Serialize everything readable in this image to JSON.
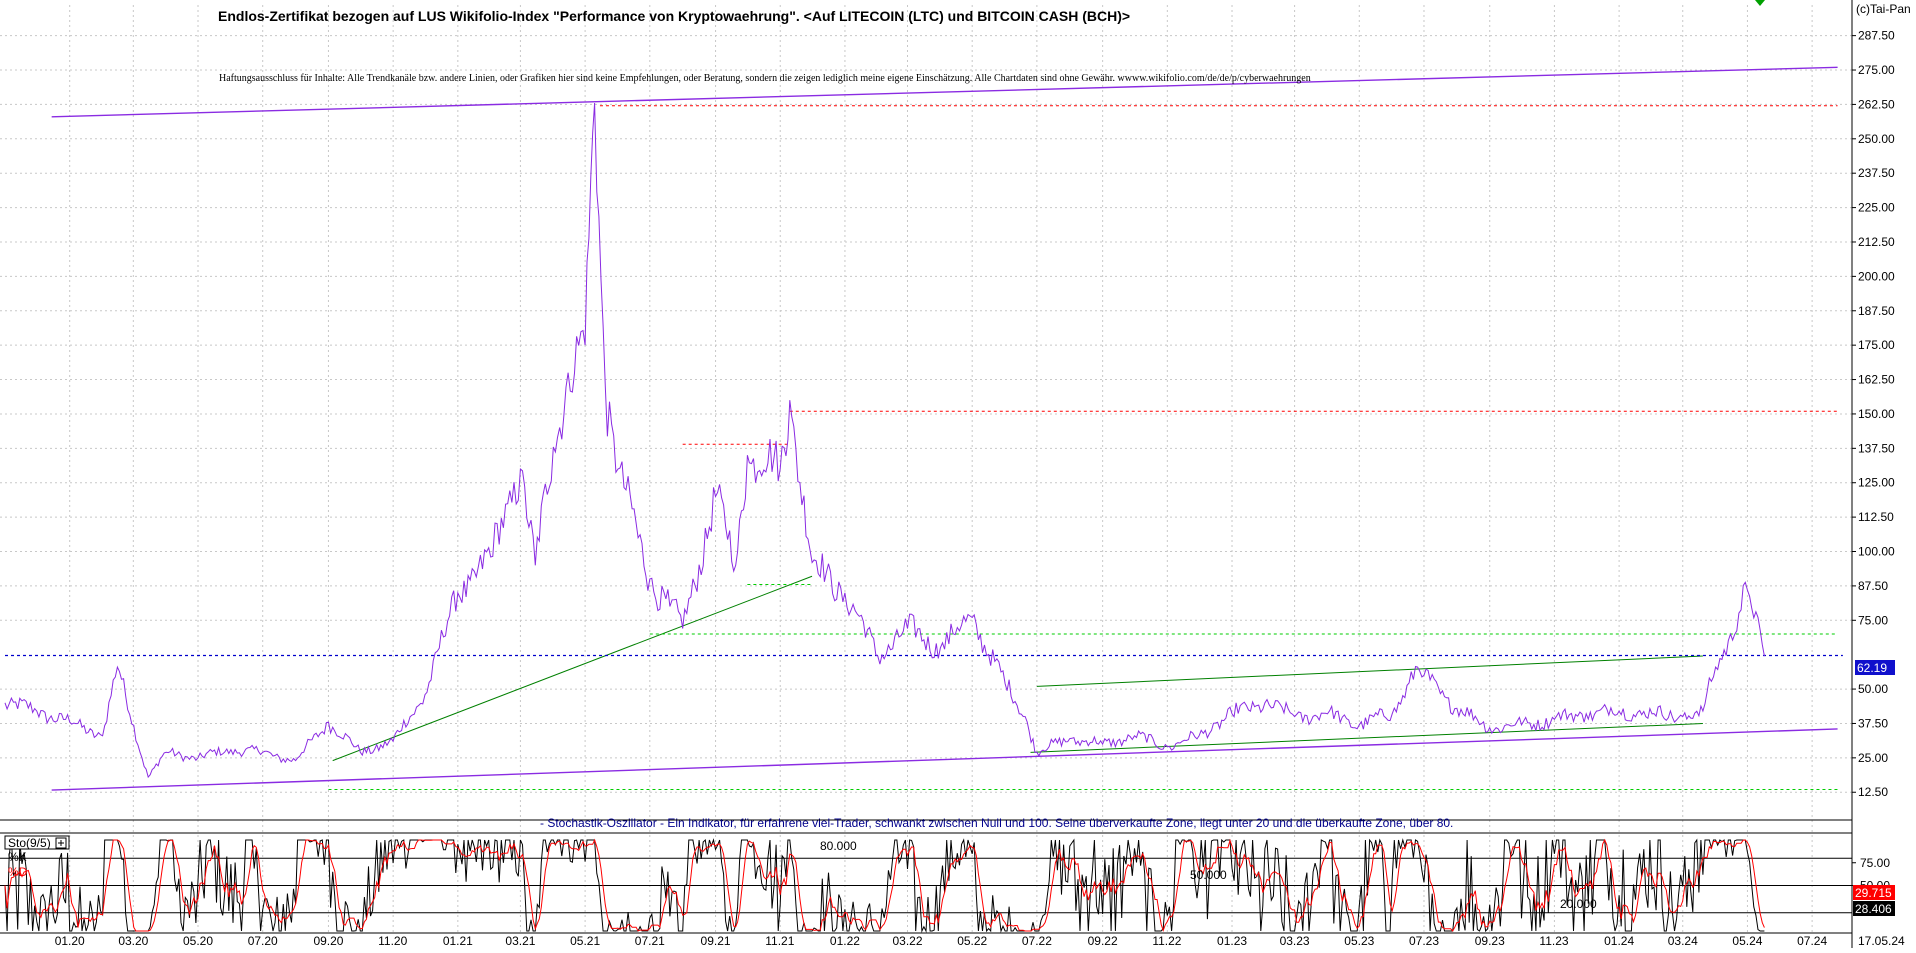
{
  "header": {
    "title": "Endlos-Zertifikat bezogen auf LUS Wikifolio-Index \"Performance von Kryptowaehrung\". <Auf LITECOIN (LTC) und BITCOIN CASH (BCH)>",
    "disclaimer": "Haftungsausschluss für Inhalte: Alle Trendkanäle bzw. andere Linien, oder Grafiken hier sind keine Empfehlungen, oder Beratung, sondern die zeigen lediglich meine eigene Einschätzung. Alle Chartdaten sind ohne Gewähr. wwww.wikifolio.com/de/de/p/cyberwaehrungen",
    "copyright": "(c)Tai-Pan"
  },
  "colors": {
    "price": "#8a2be2",
    "trend_green": "#008000",
    "support_dash": "#00cc00",
    "resist_dash": "#ff0000",
    "current_dash": "#0000cc",
    "stoch_k": "#000000",
    "stoch_d": "#ff0000",
    "grid": "#c8c8c8"
  },
  "chart_data": [
    {
      "type": "line",
      "title": "Endlos-Zertifikat bezogen auf LUS Wikifolio-Index \"Performance von Kryptowaehrung\". <Auf LITECOIN (LTC) und BITCOIN CASH (BCH)>",
      "x_tick_labels": [
        "01.20",
        "03.20",
        "05.20",
        "07.20",
        "09.20",
        "11.20",
        "01.21",
        "03.21",
        "05.21",
        "07.21",
        "09.21",
        "11.21",
        "01.22",
        "03.22",
        "05.22",
        "07.22",
        "09.22",
        "11.22",
        "01.23",
        "03.23",
        "05.23",
        "07.23",
        "09.23",
        "11.23",
        "01.24",
        "03.24",
        "05.24",
        "07.24",
        "17.05.24"
      ],
      "y_tick_labels": [
        "12.50",
        "25.00",
        "37.50",
        "50.00",
        "62.19",
        "75.00",
        "87.50",
        "100.00",
        "112.50",
        "125.00",
        "137.50",
        "150.00",
        "162.50",
        "175.00",
        "187.50",
        "200.00",
        "212.50",
        "225.00",
        "237.50",
        "250.00",
        "262.50",
        "275.00",
        "287.50"
      ],
      "ylim": [
        7.5,
        295
      ],
      "last_value": "62.19",
      "series": [
        {
          "x": [
            "2019-11-01",
            "2019-12-01",
            "2020-01-01",
            "2020-02-01",
            "2020-02-15",
            "2020-03-15",
            "2020-04-01",
            "2020-05-01",
            "2020-06-01",
            "2020-07-01",
            "2020-08-01",
            "2020-09-01",
            "2020-10-01",
            "2020-11-01",
            "2020-12-01",
            "2021-01-01",
            "2021-02-01",
            "2021-03-01",
            "2021-03-15",
            "2021-04-01",
            "2021-04-15",
            "2021-05-01",
            "2021-05-10",
            "2021-05-20",
            "2021-06-01",
            "2021-06-20",
            "2021-07-01",
            "2021-07-20",
            "2021-08-01",
            "2021-09-01",
            "2021-09-20",
            "2021-10-01",
            "2021-11-01",
            "2021-11-10",
            "2021-12-01",
            "2022-01-01",
            "2022-02-01",
            "2022-03-01",
            "2022-04-01",
            "2022-05-01",
            "2022-06-01",
            "2022-06-20",
            "2022-07-01",
            "2022-08-01",
            "2022-09-01",
            "2022-10-01",
            "2022-11-01",
            "2022-12-01",
            "2023-01-01",
            "2023-02-01",
            "2023-03-01",
            "2023-04-01",
            "2023-05-01",
            "2023-06-01",
            "2023-06-25",
            "2023-07-01",
            "2023-08-01",
            "2023-09-01",
            "2023-10-01",
            "2023-11-01",
            "2023-12-01",
            "2024-01-01",
            "2024-02-01",
            "2024-03-01",
            "2024-03-20",
            "2024-04-01",
            "2024-04-15",
            "2024-05-01",
            "2024-05-17"
          ],
          "values": [
            45,
            42,
            38,
            33,
            58,
            18,
            27,
            25,
            28,
            27,
            24,
            38,
            27,
            31,
            48,
            85,
            98,
            130,
            95,
            138,
            165,
            175,
            263,
            160,
            130,
            105,
            90,
            80,
            72,
            120,
            95,
            135,
            130,
            155,
            96,
            85,
            62,
            72,
            65,
            76,
            52,
            40,
            27,
            32,
            30,
            33,
            29,
            33,
            41,
            45,
            40,
            41,
            37,
            41,
            58,
            55,
            43,
            36,
            37,
            39,
            41,
            42,
            41,
            40,
            42,
            58,
            70,
            86,
            62
          ]
        }
      ],
      "annotations": [
        {
          "type": "trendline",
          "color": "#8a2be2",
          "x": [
            "2019-12-15",
            "2024-07-25"
          ],
          "y": [
            258,
            276
          ]
        },
        {
          "type": "trendline",
          "color": "#8a2be2",
          "x": [
            "2019-12-15",
            "2024-07-25"
          ],
          "y": [
            13.3,
            35.5
          ]
        },
        {
          "type": "trendline",
          "color": "#008000",
          "x": [
            "2020-09-05",
            "2021-12-01"
          ],
          "y": [
            24,
            91
          ]
        },
        {
          "type": "trendline",
          "color": "#008000",
          "x": [
            "2022-07-01",
            "2024-03-20"
          ],
          "y": [
            51,
            62
          ]
        },
        {
          "type": "trendline",
          "color": "#008000",
          "x": [
            "2022-06-25",
            "2024-03-20"
          ],
          "y": [
            27,
            37.5
          ]
        },
        {
          "type": "hline",
          "color": "#ff0000",
          "y": 262,
          "x": [
            "2021-05-15",
            "2024-07-25"
          ]
        },
        {
          "type": "hline",
          "color": "#ff0000",
          "y": 151,
          "x": [
            "2021-11-10",
            "2024-07-25"
          ]
        },
        {
          "type": "hline",
          "color": "#ff0000",
          "y": 139,
          "x": [
            "2021-08-01",
            "2021-11-10"
          ]
        },
        {
          "type": "hline",
          "color": "#00cc00",
          "y": 88,
          "x": [
            "2021-10-01",
            "2021-12-01"
          ]
        },
        {
          "type": "hline",
          "color": "#00cc00",
          "y": 70,
          "x": [
            "2021-07-01",
            "2024-07-25"
          ]
        },
        {
          "type": "hline",
          "color": "#00cc00",
          "y": 13.5,
          "x": [
            "2020-09-01",
            "2024-07-25"
          ]
        },
        {
          "type": "hline",
          "color": "#0000cc",
          "y": 62.19,
          "x": [
            "2019-11-01",
            "2024-07-30"
          ]
        }
      ]
    },
    {
      "type": "line",
      "title": "Sto(9/5)",
      "indicator_note": "- Stochastik-Oszillator - Ein Indikator, für erfahrene viel-Trader, schwankt zwischen Null und 100. Seine überverkaufte Zone, liegt unter 20 und die überkaufte Zone, über 80.",
      "legend": [
        "%K",
        "%D"
      ],
      "y_tick_labels": [
        "75.00",
        "50.00",
        "29.715",
        "28.406"
      ],
      "level_labels": [
        "80.000",
        "50.000",
        "20.000"
      ],
      "levels": [
        80,
        50,
        20
      ],
      "last_k": "29.715",
      "last_d": "28.406",
      "ylim": [
        0,
        100
      ],
      "cycle_days": 24
    }
  ]
}
